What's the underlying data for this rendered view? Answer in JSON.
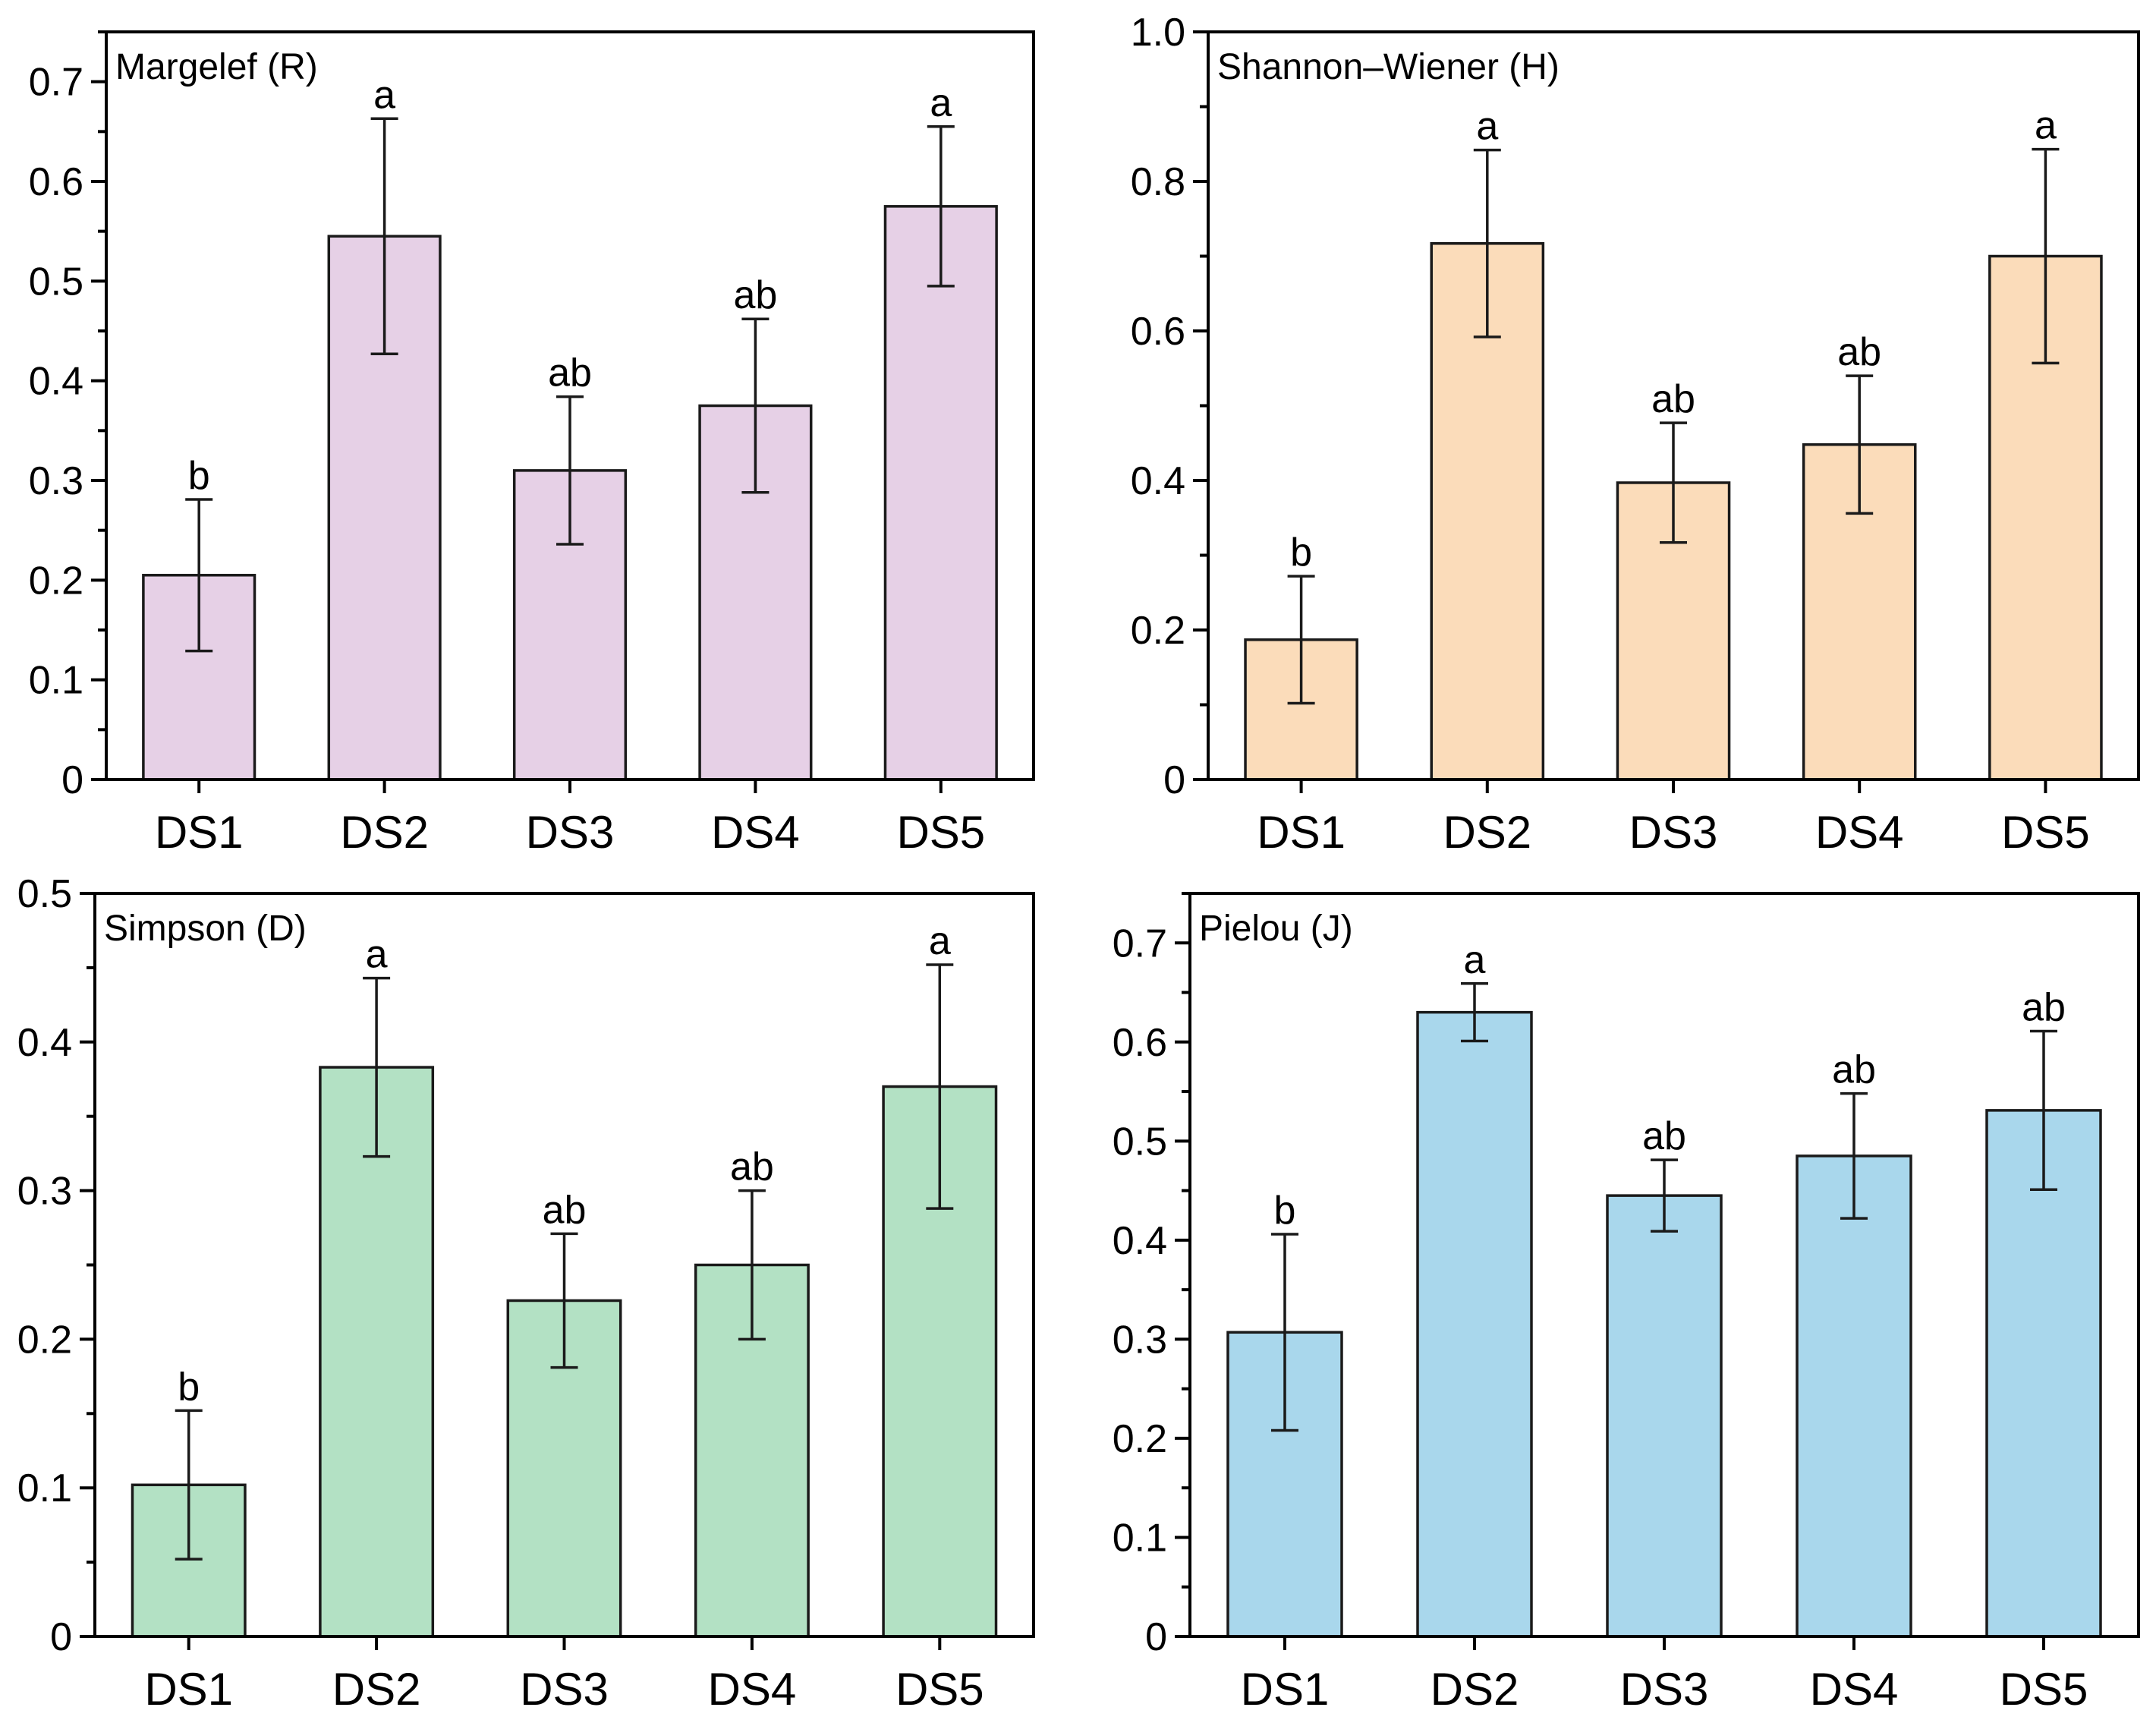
{
  "chart_data": [
    {
      "type": "bar",
      "title": "Margelef  (R)",
      "categories": [
        "DS1",
        "DS2",
        "DS3",
        "DS4",
        "DS5"
      ],
      "values": [
        0.205,
        0.545,
        0.31,
        0.375,
        0.575
      ],
      "errors": [
        0.076,
        0.118,
        0.074,
        0.087,
        0.08
      ],
      "letters": [
        "b",
        "a",
        "ab",
        "ab",
        "a"
      ],
      "ylim": [
        0,
        0.75
      ],
      "yticks": [
        0,
        0.1,
        0.2,
        0.3,
        0.4,
        0.5,
        0.6,
        0.7
      ],
      "ytick_labels": [
        "0",
        "0.1",
        "0.2",
        "0.3",
        "0.4",
        "0.5",
        "0.6",
        "0.7"
      ],
      "ymajor": 0.1,
      "yminor": 0.05,
      "color": "#e6d0e6",
      "xlabel": "",
      "ylabel": ""
    },
    {
      "type": "bar",
      "title": "Shannon–Wiener (H)",
      "categories": [
        "DS1",
        "DS2",
        "DS3",
        "DS4",
        "DS5"
      ],
      "values": [
        0.187,
        0.717,
        0.397,
        0.448,
        0.7
      ],
      "errors": [
        0.085,
        0.125,
        0.08,
        0.092,
        0.143
      ],
      "letters": [
        "b",
        "a",
        "ab",
        "ab",
        "a"
      ],
      "ylim": [
        0,
        1.0
      ],
      "yticks": [
        0,
        0.2,
        0.4,
        0.6,
        0.8,
        1.0
      ],
      "ytick_labels": [
        "0",
        "0.2",
        "0.4",
        "0.6",
        "0.8",
        "1.0"
      ],
      "ymajor": 0.2,
      "yminor": 0.1,
      "color": "#fbdcba",
      "xlabel": "",
      "ylabel": ""
    },
    {
      "type": "bar",
      "title": "Simpson (D)",
      "categories": [
        "DS1",
        "DS2",
        "DS3",
        "DS4",
        "DS5"
      ],
      "values": [
        0.102,
        0.383,
        0.226,
        0.25,
        0.37
      ],
      "errors": [
        0.05,
        0.06,
        0.045,
        0.05,
        0.082
      ],
      "letters": [
        "b",
        "a",
        "ab",
        "ab",
        "a"
      ],
      "ylim": [
        0,
        0.5
      ],
      "yticks": [
        0,
        0.1,
        0.2,
        0.3,
        0.4,
        0.5
      ],
      "ytick_labels": [
        "0",
        "0.1",
        "0.2",
        "0.3",
        "0.4",
        "0.5"
      ],
      "ymajor": 0.1,
      "yminor": 0.05,
      "color": "#b3e1c4",
      "xlabel": "",
      "ylabel": ""
    },
    {
      "type": "bar",
      "title": "Pielou (J)",
      "categories": [
        "DS1",
        "DS2",
        "DS3",
        "DS4",
        "DS5"
      ],
      "values": [
        0.307,
        0.63,
        0.445,
        0.485,
        0.531
      ],
      "errors": [
        0.099,
        0.029,
        0.036,
        0.063,
        0.08
      ],
      "letters": [
        "b",
        "a",
        "ab",
        "ab",
        "ab"
      ],
      "ylim": [
        0,
        0.75
      ],
      "yticks": [
        0,
        0.1,
        0.2,
        0.3,
        0.4,
        0.5,
        0.6,
        0.7
      ],
      "ytick_labels": [
        "0",
        "0.1",
        "0.2",
        "0.3",
        "0.4",
        "0.5",
        "0.6",
        "0.7"
      ],
      "ymajor": 0.1,
      "yminor": 0.05,
      "color": "#a9d7ec",
      "xlabel": "",
      "ylabel": ""
    }
  ]
}
